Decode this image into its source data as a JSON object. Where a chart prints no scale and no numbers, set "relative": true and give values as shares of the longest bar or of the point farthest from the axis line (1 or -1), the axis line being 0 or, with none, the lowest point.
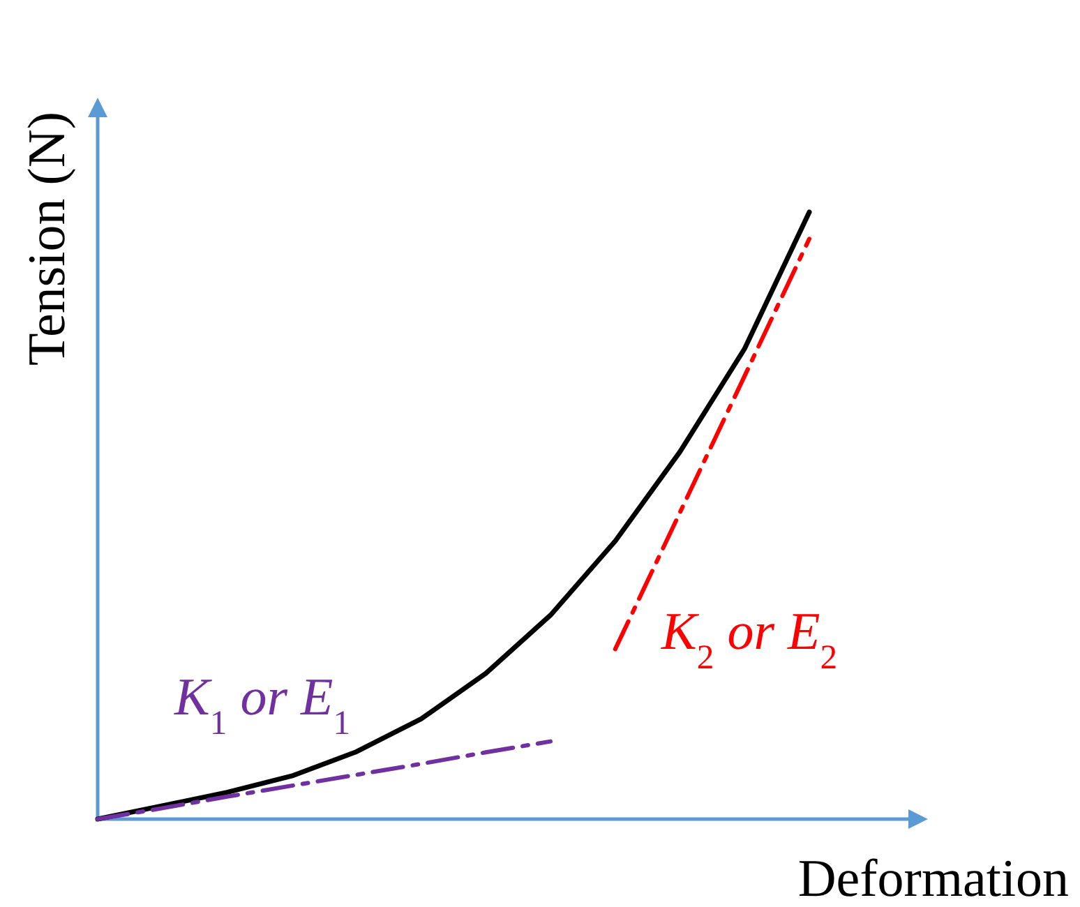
{
  "chart_data": {
    "type": "line",
    "relative": true,
    "xlabel": "Deformation",
    "ylabel": "Tension (N)",
    "categories": [
      null,
      null,
      null,
      null,
      null,
      null,
      null,
      null,
      null,
      null,
      null,
      null
    ],
    "series": [
      {
        "color": "#000000",
        "line_style": "solid",
        "values": [
          0,
          0.022,
          0.044,
          0.071,
          0.111,
          0.165,
          0.24,
          0.336,
          0.458,
          0.605,
          0.775,
          1
        ]
      },
      {
        "color": "#7030a0",
        "line_style": "dashed",
        "values": [
          0,
          0.018,
          0.037,
          0.055,
          0.073,
          0.091,
          0.11,
          0.128,
          null,
          null,
          null,
          null
        ]
      },
      {
        "color": "#ff0000",
        "line_style": "dashed",
        "values": [
          null,
          null,
          null,
          null,
          null,
          null,
          null,
          null,
          0.28,
          0.505,
          0.73,
          0.956
        ]
      }
    ],
    "annotations": [
      "K$_{1}$ or E$_{1}$",
      "K$_{2}$ or E$_{2}$"
    ]
  }
}
